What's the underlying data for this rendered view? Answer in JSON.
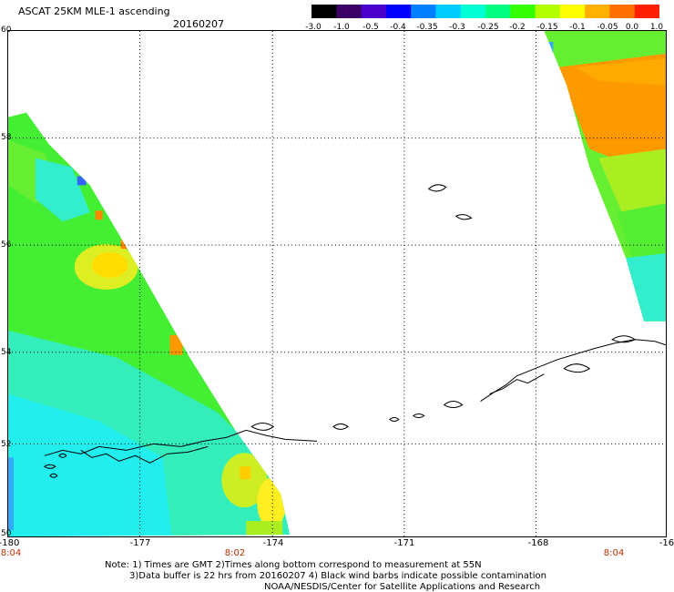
{
  "title": "ASCAT 25KM MLE-1 ascending",
  "date": "20160207",
  "colorbar": {
    "labels": [
      "-3.0",
      "-1.0",
      "-0.5",
      "-0.4",
      "-0.35",
      "-0.3",
      "-0.25",
      "-0.2",
      "-0.15",
      "-0.1",
      "-0.05",
      "0.0",
      "1.0"
    ],
    "colors": [
      "#000000",
      "#3a0066",
      "#4b00cc",
      "#0000ff",
      "#0080ff",
      "#00ccff",
      "#00ffd5",
      "#00ff80",
      "#33ff00",
      "#b3ff00",
      "#ffff00",
      "#ffb000",
      "#ff7000",
      "#ff2000"
    ]
  },
  "longitude_labels": [
    "-180",
    "-177",
    "-174",
    "-171",
    "-168",
    "-16"
  ],
  "latitude_labels": [
    "60",
    "58",
    "56",
    "54",
    "52",
    "50"
  ],
  "time_labels": [
    "8:04",
    "8:02",
    "8:04"
  ],
  "notes": [
    "Note: 1) Times are GMT 2)Times along bottom correspond to measurement at 55N",
    "3)Data buffer is 22 hrs from 20160207 4) Black wind barbs indicate possible contamination",
    "NOAA/NESDIS/Center for Satellite Applications and Research"
  ]
}
